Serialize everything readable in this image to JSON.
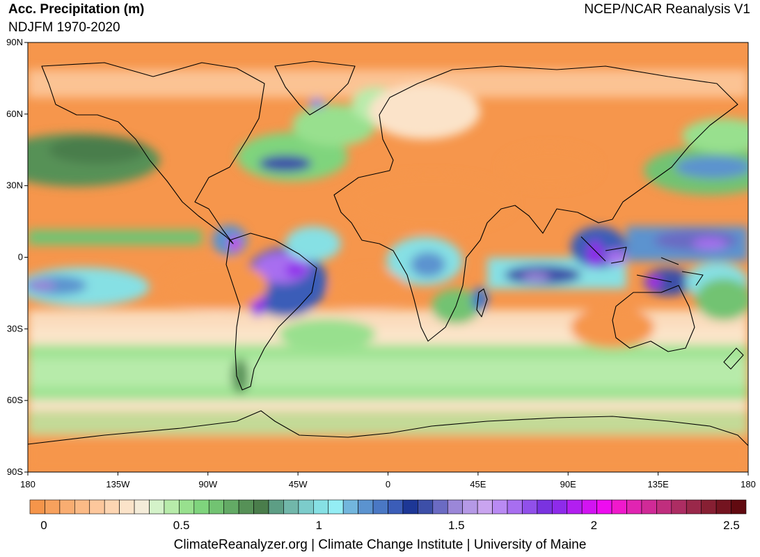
{
  "header": {
    "title": "Acc. Precipitation (m)",
    "subtitle": "NDJFM 1970-2020",
    "source": "NCEP/NCAR Reanalysis V1"
  },
  "footer": "ClimateReanalyzer.org | Climate Change Institute | University of Maine",
  "map": {
    "projection": "equirectangular",
    "lon_range": [
      -180,
      180
    ],
    "lat_range": [
      -90,
      90
    ],
    "lat_tick_labels": [
      "90N",
      "60N",
      "30N",
      "0",
      "30S",
      "60S",
      "90S"
    ],
    "lon_tick_labels": [
      "180",
      "135W",
      "90W",
      "45W",
      "0",
      "45E",
      "90E",
      "135E",
      "180"
    ]
  },
  "colorbar": {
    "tick_labels": [
      "0",
      "0.5",
      "1",
      "1.5",
      "2",
      "2.5"
    ],
    "colors": [
      "#f5954a",
      "#f7a15d",
      "#f9ad71",
      "#fbba86",
      "#fdc79c",
      "#fdd5b2",
      "#fbe3c9",
      "#f4ecd9",
      "#d4f2c9",
      "#b7ebaa",
      "#98e08e",
      "#7fd47d",
      "#72c372",
      "#63aa65",
      "#569157",
      "#4a7d4b",
      "#5d9e85",
      "#71b7aa",
      "#7ccccb",
      "#86e0e4",
      "#94edf4",
      "#72b6dd",
      "#5b93cf",
      "#4a78c4",
      "#3b5db8",
      "#1d3796",
      "#3d4fa8",
      "#6b6bc3",
      "#9b87d8",
      "#b599e6",
      "#c9a4ef",
      "#b98af3",
      "#a86ef0",
      "#9150ea",
      "#7a33e0",
      "#8e2bea",
      "#b21ff0",
      "#d214f2",
      "#ee0cf0",
      "#f019cc",
      "#e124b2",
      "#d02a97",
      "#c02e7e",
      "#ad2d63",
      "#9a284a",
      "#871f33",
      "#741420",
      "#610a10"
    ]
  },
  "legend_note": "colors-by-region: orange = dry (<0.2 m), green = moderate (~0.5 m), blue = wet (~1-1.3 m), purple/magenta = very wet (>1.5 m)"
}
